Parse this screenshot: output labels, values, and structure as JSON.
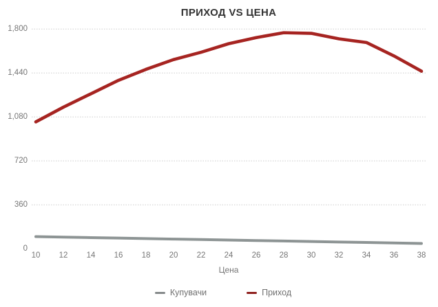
{
  "chart_data": {
    "type": "line",
    "title": "ПРИХОД VS ЦЕНА",
    "xlabel": "Цена",
    "ylabel": "",
    "x": [
      10,
      12,
      14,
      16,
      18,
      20,
      22,
      24,
      26,
      28,
      30,
      32,
      34,
      36,
      38
    ],
    "xlim": [
      10,
      38
    ],
    "ylim": [
      0,
      1800
    ],
    "y_ticks": [
      {
        "value": 0,
        "label": "0"
      },
      {
        "value": 360,
        "label": "360"
      },
      {
        "value": 720,
        "label": "720"
      },
      {
        "value": 1080,
        "label": "1,080"
      },
      {
        "value": 1440,
        "label": "1,440"
      },
      {
        "value": 1800,
        "label": "1,800"
      }
    ],
    "grid": "horizontal-dotted",
    "legend_position": "bottom",
    "series": [
      {
        "name": "Купувачи",
        "color": "#8d9494",
        "legend_color": "#85898a",
        "line_width": 4,
        "values": [
          100,
          96,
          92,
          88,
          84,
          80,
          76,
          72,
          68,
          64,
          60,
          56,
          52,
          48,
          44
        ]
      },
      {
        "name": "Приход",
        "color": "#a62421",
        "legend_color": "#8e1f1c",
        "line_width": 4.6,
        "values": [
          1040,
          1160,
          1270,
          1380,
          1470,
          1550,
          1610,
          1680,
          1730,
          1770,
          1765,
          1720,
          1690,
          1580,
          1455
        ]
      }
    ],
    "colors": {
      "title_text": "#333333",
      "axis_text": "#757575",
      "gridline": "#cbcbcb",
      "background": "#ffffff"
    }
  }
}
